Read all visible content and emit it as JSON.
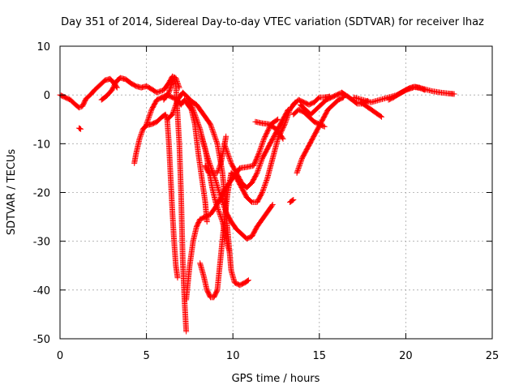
{
  "chart_data": {
    "type": "scatter",
    "title": "Day 351 of 2014, Sidereal Day-to-day VTEC variation (SDTVAR) for receiver lhaz",
    "xlabel": "GPS time / hours",
    "ylabel": "SDTVAR / TECUs",
    "xlim": [
      0,
      25
    ],
    "ylim": [
      -50,
      10
    ],
    "xticks": [
      0,
      5,
      10,
      15,
      20,
      25
    ],
    "yticks": [
      10,
      0,
      -10,
      -20,
      -30,
      -40,
      -50
    ],
    "grid": true,
    "marker": "+",
    "color": "#ff0000",
    "series": [
      {
        "name": "trace-1",
        "points": [
          [
            0,
            0
          ],
          [
            0.3,
            -0.5
          ],
          [
            0.6,
            -1
          ],
          [
            0.9,
            -2
          ],
          [
            1.1,
            -2.6
          ],
          [
            1.3,
            -2.3
          ],
          [
            1.5,
            -0.8
          ],
          [
            1.8,
            0.2
          ],
          [
            2.0,
            1
          ],
          [
            2.3,
            2
          ],
          [
            2.6,
            3
          ],
          [
            2.9,
            3.3
          ],
          [
            3.1,
            2.5
          ],
          [
            3.3,
            1.5
          ]
        ]
      },
      {
        "name": "trace-2",
        "points": [
          [
            1.1,
            -6.8
          ],
          [
            1.2,
            -7
          ]
        ]
      },
      {
        "name": "trace-3",
        "points": [
          [
            2.4,
            -1
          ],
          [
            2.7,
            -0.2
          ],
          [
            3.0,
            1
          ],
          [
            3.3,
            3
          ],
          [
            3.5,
            3.5
          ],
          [
            3.8,
            3.2
          ],
          [
            4.1,
            2.4
          ],
          [
            4.4,
            1.8
          ],
          [
            4.7,
            1.5
          ],
          [
            5.0,
            1.8
          ],
          [
            5.3,
            1.2
          ],
          [
            5.6,
            0.5
          ],
          [
            6.0,
            1
          ],
          [
            6.3,
            2.5
          ],
          [
            6.5,
            3.8
          ],
          [
            6.7,
            3.5
          ],
          [
            6.9,
            1.5
          ]
        ]
      },
      {
        "name": "trace-4",
        "points": [
          [
            4.3,
            -14
          ],
          [
            4.4,
            -12
          ],
          [
            4.6,
            -9
          ],
          [
            4.8,
            -7
          ],
          [
            5.0,
            -6.2
          ],
          [
            5.3,
            -6
          ],
          [
            5.6,
            -5.5
          ],
          [
            5.9,
            -4.5
          ],
          [
            6.1,
            -4
          ],
          [
            6.2,
            -5
          ],
          [
            6.3,
            -10
          ],
          [
            6.4,
            -17
          ],
          [
            6.5,
            -24
          ],
          [
            6.6,
            -30
          ],
          [
            6.7,
            -35
          ],
          [
            6.8,
            -37.5
          ]
        ]
      },
      {
        "name": "trace-5",
        "points": [
          [
            6.0,
            -1
          ],
          [
            6.3,
            0.5
          ],
          [
            6.5,
            2.8
          ],
          [
            6.6,
            3.5
          ],
          [
            6.7,
            2
          ],
          [
            6.8,
            -4
          ],
          [
            6.9,
            -10
          ],
          [
            7.0,
            -20
          ],
          [
            7.1,
            -34
          ],
          [
            7.2,
            -42
          ],
          [
            7.3,
            -48.5
          ]
        ]
      },
      {
        "name": "trace-6",
        "points": [
          [
            5.0,
            -6
          ],
          [
            5.3,
            -3
          ],
          [
            5.6,
            -1
          ],
          [
            5.9,
            -0.5
          ],
          [
            6.2,
            0
          ],
          [
            6.5,
            -0.5
          ],
          [
            6.8,
            -1
          ],
          [
            7.0,
            -2
          ],
          [
            7.2,
            -1
          ],
          [
            7.4,
            -2
          ],
          [
            7.6,
            -3
          ],
          [
            7.8,
            -6
          ],
          [
            8.0,
            -12
          ],
          [
            8.2,
            -17
          ],
          [
            8.4,
            -22
          ],
          [
            8.5,
            -26
          ]
        ]
      },
      {
        "name": "trace-7",
        "points": [
          [
            7.3,
            -42
          ],
          [
            7.5,
            -35
          ],
          [
            7.7,
            -30
          ],
          [
            7.9,
            -27
          ],
          [
            8.1,
            -25.5
          ],
          [
            8.4,
            -25
          ],
          [
            8.7,
            -24.5
          ],
          [
            9.0,
            -23
          ],
          [
            9.3,
            -21
          ],
          [
            9.6,
            -19
          ],
          [
            10.0,
            -17
          ],
          [
            10.4,
            -15
          ],
          [
            10.8,
            -14.8
          ],
          [
            11.2,
            -14.5
          ],
          [
            11.5,
            -12
          ],
          [
            11.8,
            -9
          ],
          [
            12.2,
            -6
          ],
          [
            12.6,
            -5
          ]
        ]
      },
      {
        "name": "trace-8",
        "points": [
          [
            6.2,
            -5
          ],
          [
            6.5,
            -4
          ],
          [
            6.8,
            -1
          ],
          [
            7.1,
            0.5
          ],
          [
            7.4,
            -0.5
          ],
          [
            7.6,
            -2
          ],
          [
            7.8,
            -4
          ],
          [
            8.1,
            -7
          ],
          [
            8.3,
            -10
          ],
          [
            8.6,
            -13.5
          ],
          [
            9.0,
            -17.5
          ],
          [
            9.3,
            -21
          ],
          [
            9.6,
            -24
          ],
          [
            9.9,
            -26
          ],
          [
            10.2,
            -27.5
          ],
          [
            10.5,
            -28.5
          ],
          [
            10.8,
            -29.5
          ],
          [
            11.1,
            -29
          ],
          [
            11.4,
            -27
          ],
          [
            11.7,
            -25.5
          ],
          [
            12.0,
            -24
          ],
          [
            12.3,
            -22.5
          ]
        ]
      },
      {
        "name": "trace-9",
        "points": [
          [
            8.1,
            -34.5
          ],
          [
            8.3,
            -37
          ],
          [
            8.5,
            -40
          ],
          [
            8.7,
            -41.5
          ],
          [
            8.9,
            -41.5
          ],
          [
            9.1,
            -40
          ],
          [
            9.3,
            -33
          ],
          [
            9.5,
            -26
          ],
          [
            9.7,
            -20
          ],
          [
            9.9,
            -16
          ],
          [
            10.2,
            -17
          ],
          [
            10.5,
            -19
          ],
          [
            10.8,
            -21
          ],
          [
            11.1,
            -22
          ],
          [
            11.4,
            -22
          ],
          [
            11.7,
            -20
          ],
          [
            12.0,
            -17
          ],
          [
            12.3,
            -13
          ],
          [
            12.6,
            -9
          ],
          [
            13.0,
            -6
          ],
          [
            13.3,
            -3
          ],
          [
            13.6,
            -1.5
          ]
        ]
      },
      {
        "name": "trace-10",
        "points": [
          [
            8.2,
            -8.5
          ],
          [
            8.4,
            -11
          ],
          [
            8.6,
            -15
          ],
          [
            8.8,
            -19
          ],
          [
            9.0,
            -22
          ],
          [
            9.2,
            -24
          ],
          [
            9.4,
            -26
          ],
          [
            9.6,
            -29
          ],
          [
            9.7,
            -31
          ],
          [
            9.8,
            -32
          ]
        ]
      },
      {
        "name": "trace-11",
        "points": [
          [
            8.4,
            -14.5
          ],
          [
            8.6,
            -16
          ],
          [
            8.8,
            -16
          ],
          [
            9.1,
            -16
          ],
          [
            9.3,
            -14
          ],
          [
            9.5,
            -10.5
          ],
          [
            9.6,
            -8.5
          ]
        ]
      },
      {
        "name": "trace-12",
        "points": [
          [
            7.5,
            -1
          ],
          [
            7.9,
            -2
          ],
          [
            8.3,
            -4
          ],
          [
            8.7,
            -6
          ],
          [
            9.1,
            -10
          ],
          [
            9.4,
            -16
          ],
          [
            9.6,
            -24
          ],
          [
            9.8,
            -32
          ],
          [
            9.9,
            -36
          ],
          [
            10.1,
            -38.5
          ],
          [
            10.4,
            -39
          ],
          [
            10.7,
            -38.5
          ],
          [
            10.9,
            -38
          ]
        ]
      },
      {
        "name": "trace-13",
        "points": [
          [
            9.5,
            -10
          ],
          [
            9.7,
            -12
          ],
          [
            9.9,
            -14
          ],
          [
            10.2,
            -16
          ],
          [
            10.5,
            -18
          ],
          [
            10.8,
            -19
          ],
          [
            11.1,
            -18
          ],
          [
            11.4,
            -16
          ],
          [
            11.7,
            -13
          ],
          [
            12.0,
            -11
          ],
          [
            12.3,
            -9
          ],
          [
            12.6,
            -7
          ],
          [
            12.9,
            -5
          ],
          [
            13.2,
            -3
          ]
        ]
      },
      {
        "name": "trace-14",
        "points": [
          [
            11.3,
            -5.5
          ],
          [
            11.7,
            -5.8
          ],
          [
            12.1,
            -6
          ],
          [
            12.5,
            -7
          ],
          [
            12.9,
            -9
          ]
        ]
      },
      {
        "name": "trace-15",
        "points": [
          [
            13.3,
            -22
          ],
          [
            13.5,
            -21.5
          ]
        ]
      },
      {
        "name": "trace-16",
        "points": [
          [
            13.7,
            -16
          ],
          [
            14.0,
            -13
          ],
          [
            14.3,
            -11
          ],
          [
            14.6,
            -9
          ],
          [
            14.9,
            -7
          ],
          [
            15.2,
            -5
          ],
          [
            15.5,
            -3
          ],
          [
            15.8,
            -2
          ],
          [
            16.1,
            -1
          ],
          [
            16.4,
            -0.5
          ]
        ]
      },
      {
        "name": "trace-17",
        "points": [
          [
            13.5,
            -2
          ],
          [
            13.8,
            -1
          ],
          [
            14.1,
            -1.5
          ],
          [
            14.4,
            -2
          ],
          [
            14.7,
            -1.5
          ],
          [
            15.0,
            -0.5
          ],
          [
            15.3,
            -0.5
          ],
          [
            15.6,
            -0.3
          ]
        ]
      },
      {
        "name": "trace-18",
        "points": [
          [
            13.5,
            -4
          ],
          [
            13.8,
            -3
          ],
          [
            14.1,
            -3.5
          ],
          [
            14.4,
            -4.5
          ],
          [
            14.7,
            -5.5
          ],
          [
            15.0,
            -6
          ],
          [
            15.3,
            -6.5
          ]
        ]
      },
      {
        "name": "trace-19",
        "points": [
          [
            13.9,
            -2
          ],
          [
            14.2,
            -3
          ],
          [
            14.5,
            -4
          ],
          [
            14.8,
            -3
          ],
          [
            15.1,
            -2
          ],
          [
            15.4,
            -1
          ],
          [
            15.7,
            -0.5
          ],
          [
            16.0,
            0
          ],
          [
            16.3,
            0.5
          ],
          [
            16.5,
            0
          ]
        ]
      },
      {
        "name": "trace-20",
        "points": [
          [
            16.3,
            0.3
          ],
          [
            16.6,
            -0.2
          ],
          [
            16.9,
            -1
          ],
          [
            17.2,
            -1.8
          ],
          [
            17.5,
            -1.8
          ],
          [
            17.8,
            -1.2
          ]
        ]
      },
      {
        "name": "trace-21",
        "points": [
          [
            17.4,
            -1.5
          ],
          [
            17.8,
            -2.5
          ],
          [
            18.2,
            -3.5
          ],
          [
            18.6,
            -4.5
          ]
        ]
      },
      {
        "name": "trace-22",
        "points": [
          [
            17.0,
            -0.5
          ],
          [
            17.5,
            -1
          ],
          [
            18.0,
            -1.5
          ],
          [
            18.5,
            -1
          ],
          [
            19.0,
            -0.5
          ],
          [
            19.5,
            0
          ],
          [
            20.0,
            1
          ],
          [
            20.5,
            1.6
          ],
          [
            21.0,
            1.3
          ],
          [
            21.5,
            0.8
          ],
          [
            22.0,
            0.5
          ],
          [
            22.5,
            0.3
          ],
          [
            22.8,
            0.2
          ]
        ]
      },
      {
        "name": "trace-23",
        "points": [
          [
            19.0,
            -1
          ],
          [
            19.3,
            -0.5
          ],
          [
            19.6,
            0.2
          ],
          [
            19.9,
            0.8
          ],
          [
            20.2,
            1.4
          ],
          [
            20.5,
            1.7
          ],
          [
            20.8,
            1.5
          ],
          [
            21.1,
            1
          ]
        ]
      }
    ]
  }
}
